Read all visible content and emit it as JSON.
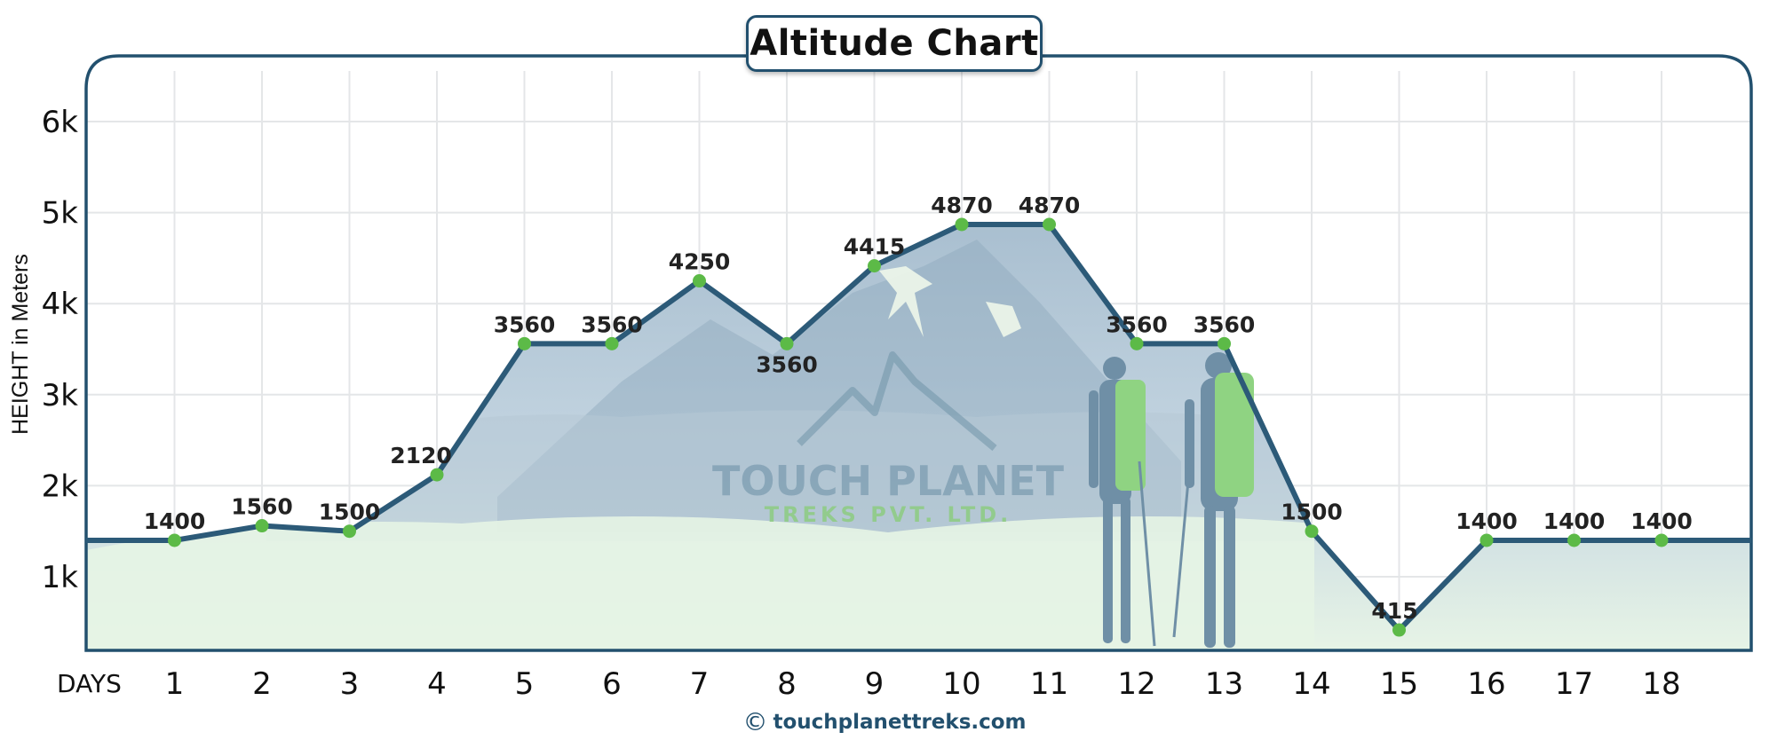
{
  "chart_data": {
    "type": "line",
    "title": "Altitude Chart",
    "ylabel": "HEIGHT in Meters",
    "xlabel": "DAYS",
    "categories": [
      "1",
      "2",
      "3",
      "4",
      "5",
      "6",
      "7",
      "8",
      "9",
      "10",
      "11",
      "12",
      "13",
      "14",
      "15",
      "16",
      "17",
      "18"
    ],
    "series": [
      {
        "values": [
          1400,
          1560,
          1500,
          2120,
          3560,
          3560,
          4250,
          3560,
          4415,
          4870,
          4870,
          3560,
          3560,
          1500,
          415,
          1400,
          1400,
          1400
        ]
      }
    ],
    "data_labels": [
      "1400",
      "1560",
      "1500",
      "2120",
      "3560",
      "3560",
      "4250",
      "3560",
      "4415",
      "4870",
      "4870",
      "3560",
      "3560",
      "1500",
      "415",
      "1400",
      "1400",
      "1400"
    ],
    "yticks": [
      "1k",
      "2k",
      "3k",
      "4k",
      "5k",
      "6k"
    ],
    "ytick_values": [
      1000,
      2000,
      3000,
      4000,
      5000,
      6000
    ],
    "ylim": [
      250,
      6600
    ],
    "grid": true,
    "colors": {
      "line": "#2c5a78",
      "marker": "#5cba47",
      "fill": "#e6f4e4",
      "frame": "#22506e"
    }
  },
  "watermark": {
    "name": "TOUCH PLANET",
    "tagline": "TREKS  PVT. LTD."
  },
  "footer": {
    "copyright_symbol": "©",
    "site": "touchplanettreks.com"
  }
}
